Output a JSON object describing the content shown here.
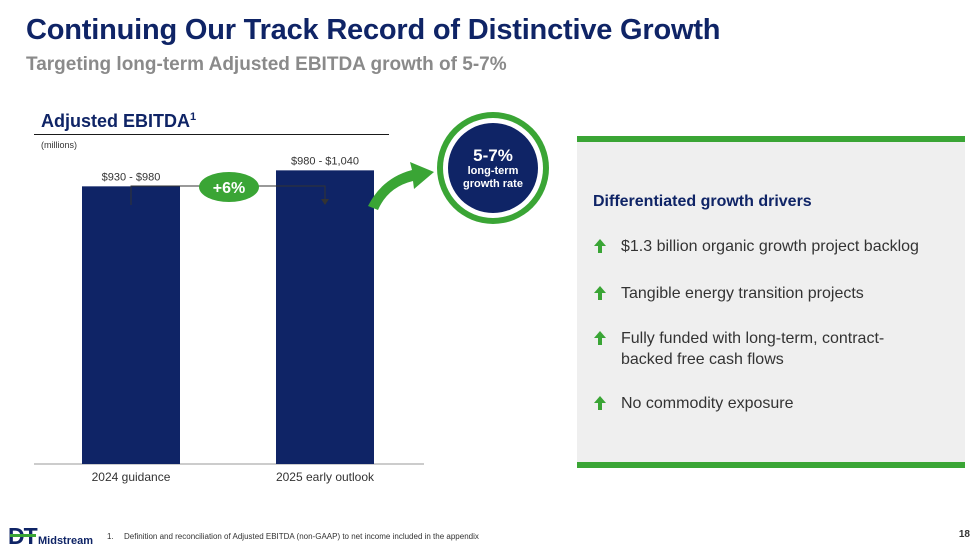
{
  "header": {
    "title": "Continuing Our Track Record of Distinctive Growth",
    "subtitle": "Targeting long-term Adjusted EBITDA growth of 5-7%"
  },
  "chart": {
    "title": "Adjusted EBITDA",
    "title_sup": "1",
    "units": "(millions)"
  },
  "chart_data": {
    "type": "bar",
    "title": "Adjusted EBITDA",
    "ylabel": "(millions)",
    "xlabel": "",
    "categories": [
      "2024 guidance",
      "2025 early outlook"
    ],
    "values": [
      955,
      1010
    ],
    "ranges": [
      [
        930,
        980
      ],
      [
        980,
        1040
      ]
    ],
    "data_labels": [
      "$930 - $980",
      "$980 - $1,040"
    ],
    "ylim": [
      0,
      1080
    ],
    "growth_label": "+6%",
    "colors": {
      "bar": "#0f2466",
      "accent": "#3aa535"
    }
  },
  "growth_circle": {
    "big": "5-7%",
    "line1": "long-term",
    "line2": "growth rate"
  },
  "panel": {
    "heading": "Differentiated growth drivers",
    "drivers": [
      {
        "icon": "up-arrow-icon",
        "text": "$1.3 billion organic growth project backlog"
      },
      {
        "icon": "up-arrow-icon",
        "text": "Tangible energy transition projects"
      },
      {
        "icon": "up-arrow-icon",
        "text_line1": "Fully funded with long-term, contract-",
        "text_line2": "backed free cash flows"
      },
      {
        "icon": "up-arrow-icon",
        "text": "No commodity exposure"
      }
    ]
  },
  "footer": {
    "logo_dt": "DT",
    "logo_midstream": "Midstream",
    "footnote_num": "1.",
    "footnote": "Definition and reconciliation of Adjusted EBITDA (non-GAAP) to net income included in the appendix",
    "page": "18"
  },
  "colors": {
    "navy": "#0f2466",
    "green": "#3aa535",
    "gray_text": "#8a8a8a",
    "panel_bg": "#efefef"
  }
}
